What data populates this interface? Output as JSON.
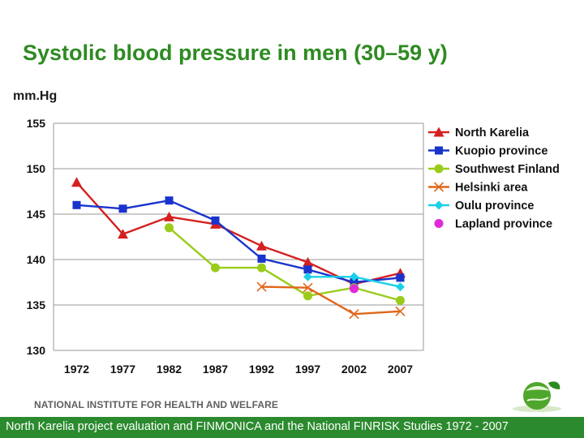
{
  "slide": {
    "title": "Systolic blood pressure in men (30–59 y)",
    "unit": "mm.Hg",
    "institute": "NATIONAL INSTITUTE FOR HEALTH AND WELFARE",
    "footer": "North Karelia project evaluation and FINMONICA and the National FINRISK Studies 1972 - 2007",
    "logo_icon": "green-leaf-globe-logo"
  },
  "chart_data": {
    "type": "line",
    "title": "Systolic blood pressure in men (30–59 y)",
    "ylabel": "mm.Hg",
    "xlabel": "",
    "categories": [
      "1972",
      "1977",
      "1982",
      "1987",
      "1992",
      "1997",
      "2002",
      "2007"
    ],
    "ylim": [
      130,
      155
    ],
    "yticks": [
      130,
      135,
      140,
      145,
      150,
      155
    ],
    "grid": "horizontal",
    "legend_position": "right",
    "series": [
      {
        "name": "North Karelia",
        "color": "#d42020",
        "marker": "triangle",
        "values": [
          148.5,
          142.8,
          144.7,
          143.9,
          141.5,
          139.7,
          137.3,
          138.5
        ]
      },
      {
        "name": "Kuopio province",
        "color": "#1a33cc",
        "marker": "square",
        "values": [
          146.0,
          145.6,
          146.5,
          144.3,
          140.1,
          138.9,
          137.5,
          138.0
        ]
      },
      {
        "name": "Southwest Finland",
        "color": "#99cc1a",
        "marker": "circle",
        "values": [
          null,
          null,
          143.5,
          139.1,
          139.1,
          136.0,
          136.9,
          135.5
        ]
      },
      {
        "name": "Helsinki area",
        "color": "#e0661a",
        "marker": "x",
        "values": [
          null,
          null,
          null,
          null,
          137.0,
          136.9,
          134.0,
          134.3
        ]
      },
      {
        "name": "Oulu province",
        "color": "#1ad0e8",
        "marker": "diamond",
        "values": [
          null,
          null,
          null,
          null,
          null,
          138.1,
          138.1,
          137.0
        ]
      },
      {
        "name": "Lapland province",
        "color": "#e02ad8",
        "marker": "circle",
        "values": [
          null,
          null,
          null,
          null,
          null,
          null,
          136.8,
          null
        ]
      }
    ]
  }
}
